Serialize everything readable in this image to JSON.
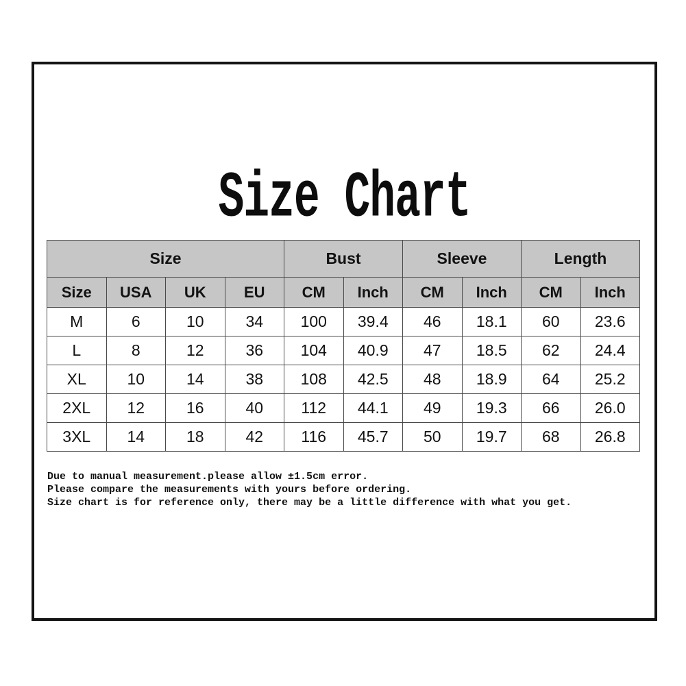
{
  "chart_data": {
    "type": "table",
    "title": "Size Chart",
    "column_groups": [
      {
        "label": "Size",
        "span": 4
      },
      {
        "label": "Bust",
        "span": 2
      },
      {
        "label": "Sleeve",
        "span": 2
      },
      {
        "label": "Length",
        "span": 2
      }
    ],
    "columns": [
      "Size",
      "USA",
      "UK",
      "EU",
      "CM",
      "Inch",
      "CM",
      "Inch",
      "CM",
      "Inch"
    ],
    "rows": [
      [
        "M",
        "6",
        "10",
        "34",
        "100",
        "39.4",
        "46",
        "18.1",
        "60",
        "23.6"
      ],
      [
        "L",
        "8",
        "12",
        "36",
        "104",
        "40.9",
        "47",
        "18.5",
        "62",
        "24.4"
      ],
      [
        "XL",
        "10",
        "14",
        "38",
        "108",
        "42.5",
        "48",
        "18.9",
        "64",
        "25.2"
      ],
      [
        "2XL",
        "12",
        "16",
        "40",
        "112",
        "44.1",
        "49",
        "19.3",
        "66",
        "26.0"
      ],
      [
        "3XL",
        "14",
        "18",
        "42",
        "116",
        "45.7",
        "50",
        "19.7",
        "68",
        "26.8"
      ]
    ],
    "notes": [
      "Due to manual measurement.please allow ±1.5cm error.",
      "Please compare the measurements with yours before ordering.",
      "Size chart is for reference only, there may be a little difference with what you get."
    ],
    "layout": {
      "header_bg": "#c6c6c6",
      "table_border_color": "#4a4a4a",
      "outer_border_color": "#141414",
      "text_color": "#121212"
    }
  }
}
